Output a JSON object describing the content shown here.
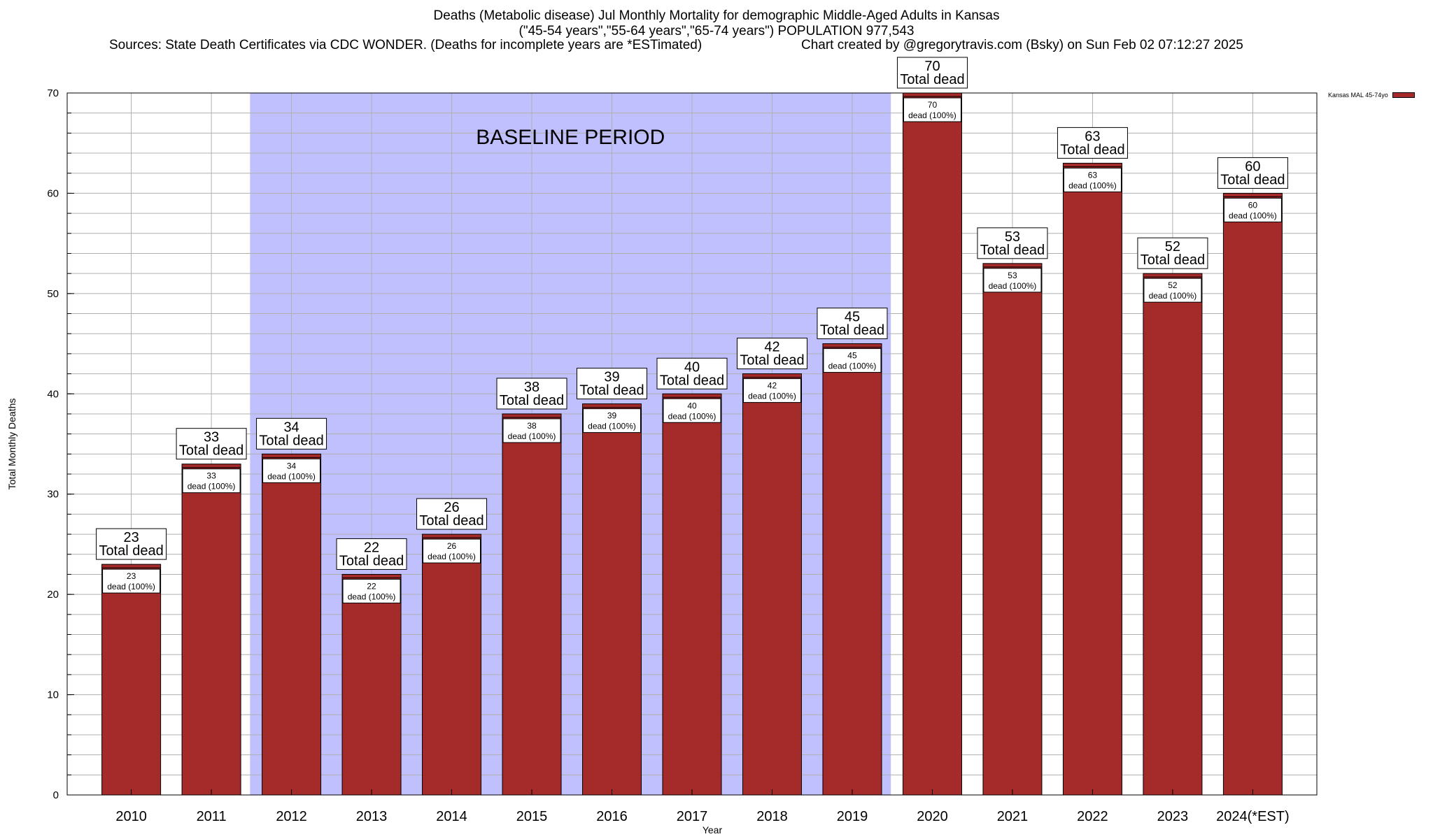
{
  "title": {
    "line1": "Deaths (Metabolic disease) Jul Monthly Mortality for demographic Middle-Aged Adults in Kansas",
    "line2": "(\"45-54 years\",\"55-64 years\",\"65-74 years\") POPULATION 977,543",
    "sources": "Sources: State Death Certificates via CDC WONDER. (Deaths for incomplete years are *ESTimated)",
    "credit": "Chart created by @gregorytravis.com (Bsky) on Sun Feb 02 07:12:27 2025"
  },
  "chart_data": {
    "type": "bar",
    "categories": [
      "2010",
      "2011",
      "2012",
      "2013",
      "2014",
      "2015",
      "2016",
      "2017",
      "2018",
      "2019",
      "2020",
      "2021",
      "2022",
      "2023",
      "2024(*EST)"
    ],
    "series": [
      {
        "name": "Kansas MAL 45-74yo",
        "values": [
          23,
          33,
          34,
          22,
          26,
          38,
          39,
          40,
          42,
          45,
          70,
          53,
          63,
          52,
          60
        ]
      }
    ],
    "total_label": "Total dead",
    "inner_label": "dead (100%)",
    "xlabel": "Year",
    "ylabel": "Total Monthly Deaths",
    "ylim": [
      0,
      70
    ],
    "yticks": [
      0,
      10,
      20,
      30,
      40,
      50,
      60,
      70
    ],
    "minor_tick_step": 2,
    "baseline": {
      "label": "BASELINE PERIOD",
      "start": "2012",
      "end": "2019"
    },
    "legend_position": "top-right",
    "grid": true,
    "colors": {
      "bar": "#a52a2a",
      "baseline": "#c0c0ff",
      "grid": "#b0b0b0"
    }
  }
}
